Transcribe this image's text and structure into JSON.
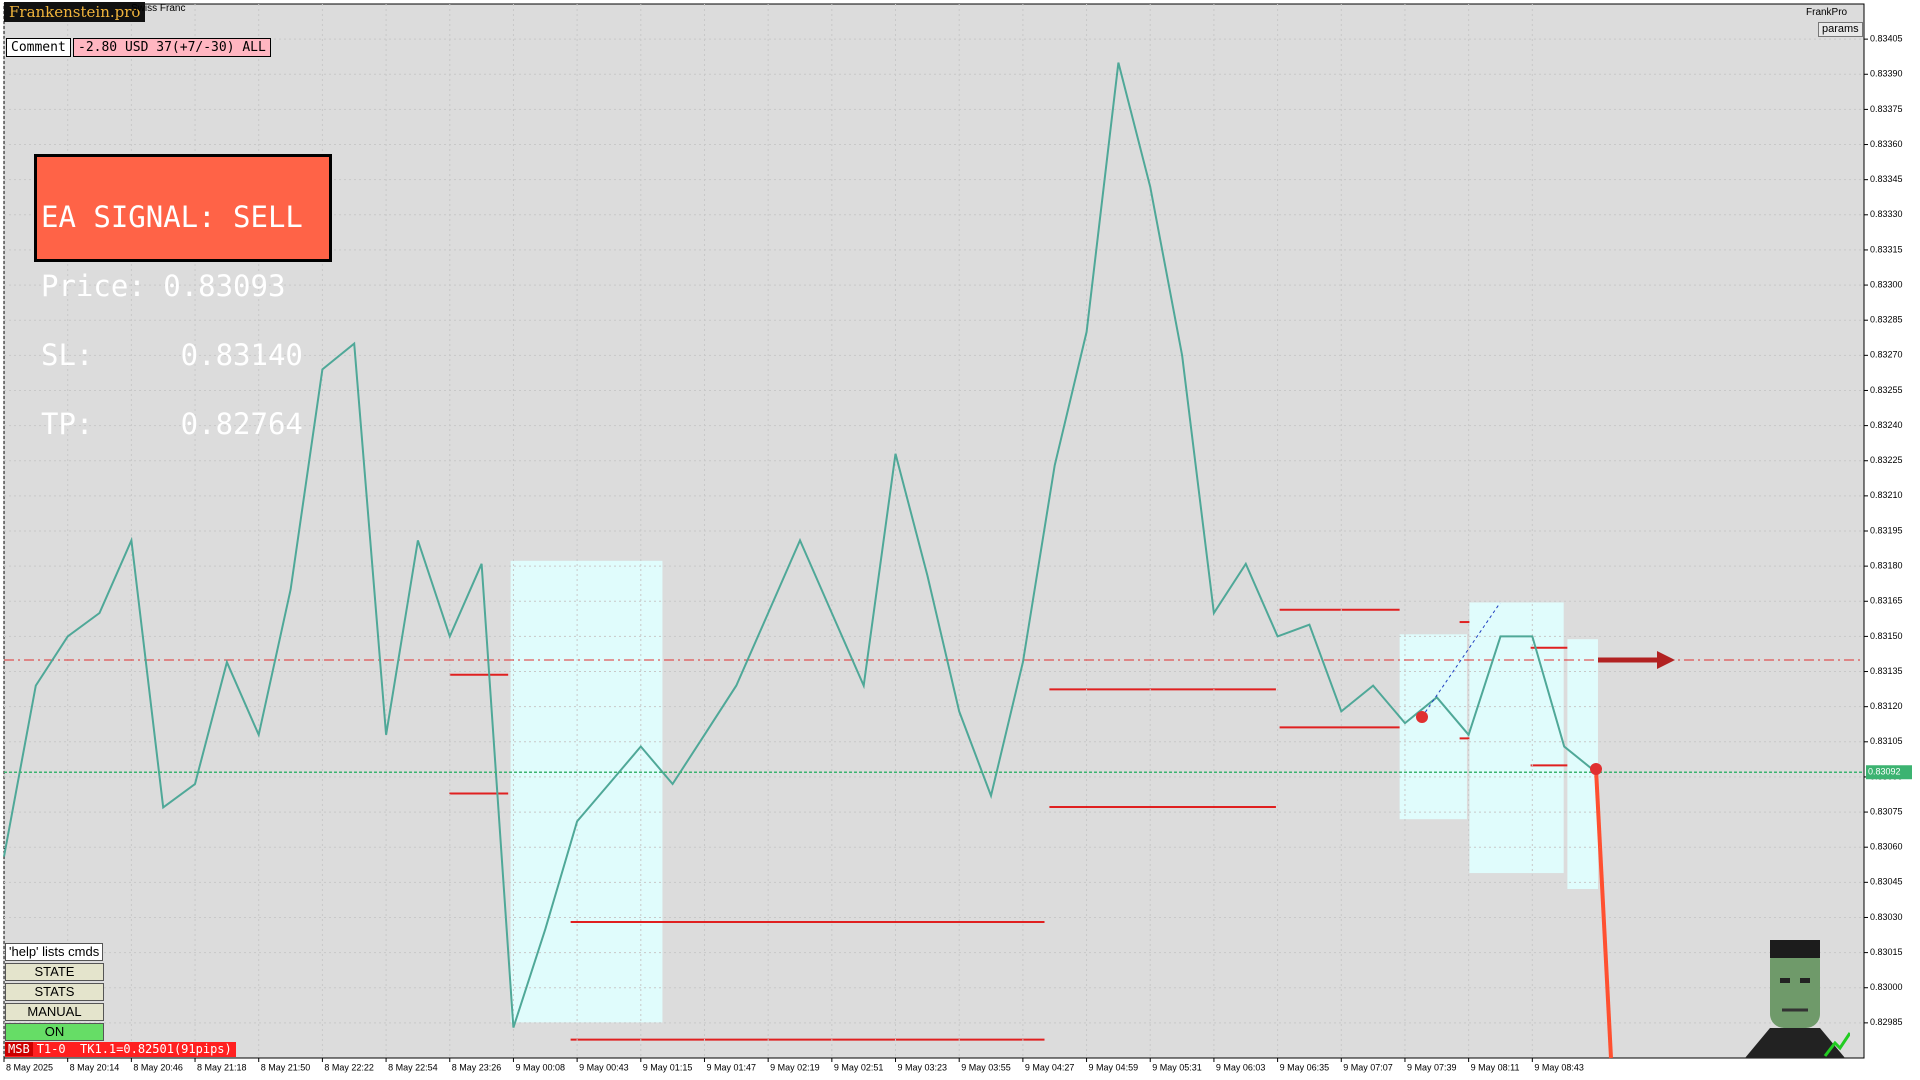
{
  "header": {
    "logo": "Frankenstein.pro",
    "symbol": "Swiss Franc",
    "brand": "FrankPro",
    "params": "params"
  },
  "comment": {
    "label": "Comment",
    "text": "-2.80 USD 37(+7/-30) ALL"
  },
  "signal": {
    "lines": [
      "EA SIGNAL: SELL",
      "Price: 0.83093",
      "SL:     0.83140",
      "TP:     0.82764"
    ]
  },
  "buttons": [
    "'help' lists cmds",
    "STATE",
    "STATS",
    "MANUAL",
    "ON"
  ],
  "status": {
    "tag": "MSB",
    "text": "T1-0  TK1.1=0.82501(91pips)"
  },
  "chart_data": {
    "type": "line",
    "color": "#4fa898",
    "grid": true,
    "categories": [
      "8 May 2025",
      null,
      "8 May 20:14",
      null,
      "8 May 20:46",
      null,
      "8 May 21:18",
      null,
      "8 May 21:50",
      null,
      "8 May 22:22",
      null,
      "8 May 22:54",
      null,
      "8 May 23:26",
      null,
      "9 May 00:08",
      null,
      "9 May 00:43",
      null,
      "9 May 01:15",
      null,
      "9 May 01:47",
      null,
      "9 May 02:19",
      null,
      "9 May 02:51",
      null,
      "9 May 03:23",
      null,
      "9 May 03:55",
      null,
      "9 May 04:27",
      null,
      "9 May 04:59",
      null,
      "9 May 05:31",
      null,
      "9 May 06:03",
      null,
      "9 May 06:35",
      null,
      "9 May 07:07",
      null,
      "9 May 07:39",
      null,
      "9 May 08:11",
      null,
      "9 May 08:43",
      null,
      null
    ],
    "values": [
      0.83056,
      0.83129,
      0.8315,
      0.8316,
      0.83191,
      0.83077,
      0.83087,
      0.83139,
      0.83108,
      0.8317,
      0.83264,
      0.83275,
      0.83108,
      0.83191,
      0.8315,
      0.83181,
      0.82983,
      0.83025,
      0.83071,
      0.83087,
      0.83103,
      0.83087,
      0.83108,
      0.83129,
      0.8316,
      0.83191,
      0.8316,
      0.83129,
      0.83228,
      0.83176,
      0.83118,
      0.83082,
      0.83139,
      0.83223,
      0.8328,
      0.83395,
      0.83342,
      0.8327,
      0.8316,
      0.83181,
      0.8315,
      0.83155,
      0.83118,
      0.83129,
      0.83113,
      0.83124,
      0.83108,
      0.8315,
      0.8315,
      0.83103,
      0.83092
    ],
    "ylim": [
      0.8297,
      0.8342
    ],
    "yticks": [
      0.83405,
      {
        "value": 0.8339,
        "label": "0.83390"
      },
      0.83375,
      {
        "value": 0.8336,
        "label": "0.83360"
      },
      0.83345,
      {
        "value": 0.8333,
        "label": "0.83330"
      },
      0.83315,
      {
        "value": 0.833,
        "label": "0.83300"
      },
      0.83285,
      {
        "value": 0.8327,
        "label": "0.83270"
      },
      0.83255,
      {
        "value": 0.8324,
        "label": "0.83240"
      },
      0.83225,
      {
        "value": 0.8321,
        "label": "0.83210"
      },
      0.83195,
      {
        "value": 0.8318,
        "label": "0.83180"
      },
      0.83165,
      {
        "value": 0.8315,
        "label": "0.83150"
      },
      0.83135,
      {
        "value": 0.8312,
        "label": "0.83120"
      },
      0.83105,
      {
        "value": 0.8309,
        "label": "0.83090"
      },
      0.83075,
      {
        "value": 0.8306,
        "label": "0.83060"
      },
      0.83045,
      {
        "value": 0.8303,
        "label": "0.83030"
      },
      0.83015,
      {
        "value": 0.83,
        "label": "0.83000"
      },
      0.82985
    ],
    "current_price": {
      "value": 0.83092,
      "label": "0.83092"
    }
  }
}
